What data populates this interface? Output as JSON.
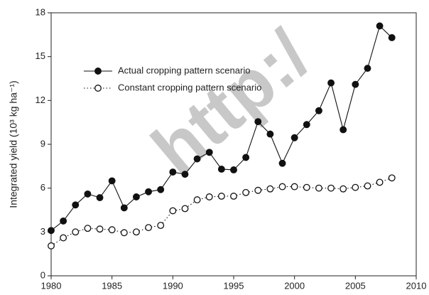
{
  "chart_data": {
    "type": "line",
    "y_label": "Integrated yield (10³ kg ha⁻¹)",
    "watermark": "http:/",
    "x": [
      1980,
      1981,
      1982,
      1983,
      1984,
      1985,
      1986,
      1987,
      1988,
      1989,
      1990,
      1991,
      1992,
      1993,
      1994,
      1995,
      1996,
      1997,
      1998,
      1999,
      2000,
      2001,
      2002,
      2003,
      2004,
      2005,
      2006,
      2007,
      2008
    ],
    "series": [
      {
        "name": "Actual cropping pattern scenario",
        "color": "#111111",
        "linestyle": "solid",
        "marker": "filled-circle",
        "values": [
          3.1,
          3.75,
          4.85,
          5.6,
          5.35,
          6.5,
          4.65,
          5.4,
          5.75,
          5.9,
          7.1,
          6.95,
          8.0,
          8.45,
          7.3,
          7.25,
          8.1,
          10.55,
          9.7,
          7.7,
          9.45,
          10.35,
          11.3,
          13.2,
          10.0,
          13.1,
          14.2,
          17.1,
          16.3
        ]
      },
      {
        "name": "Constant cropping pattern scenario",
        "color": "#111111",
        "linestyle": "dotted",
        "marker": "open-circle",
        "values": [
          2.05,
          2.6,
          3.0,
          3.25,
          3.2,
          3.15,
          2.95,
          3.0,
          3.3,
          3.45,
          4.45,
          4.6,
          5.2,
          5.4,
          5.45,
          5.45,
          5.7,
          5.85,
          5.95,
          6.1,
          6.1,
          6.05,
          6.0,
          6.0,
          5.95,
          6.05,
          6.15,
          6.4,
          6.7
        ]
      }
    ],
    "xlim": [
      1980,
      2010
    ],
    "xticks": [
      1980,
      1985,
      1990,
      1995,
      2000,
      2005,
      2010
    ],
    "ylim": [
      0,
      18
    ],
    "yticks": [
      0,
      3,
      6,
      9,
      12,
      15,
      18
    ],
    "legend": "upper-left",
    "grid": false
  }
}
